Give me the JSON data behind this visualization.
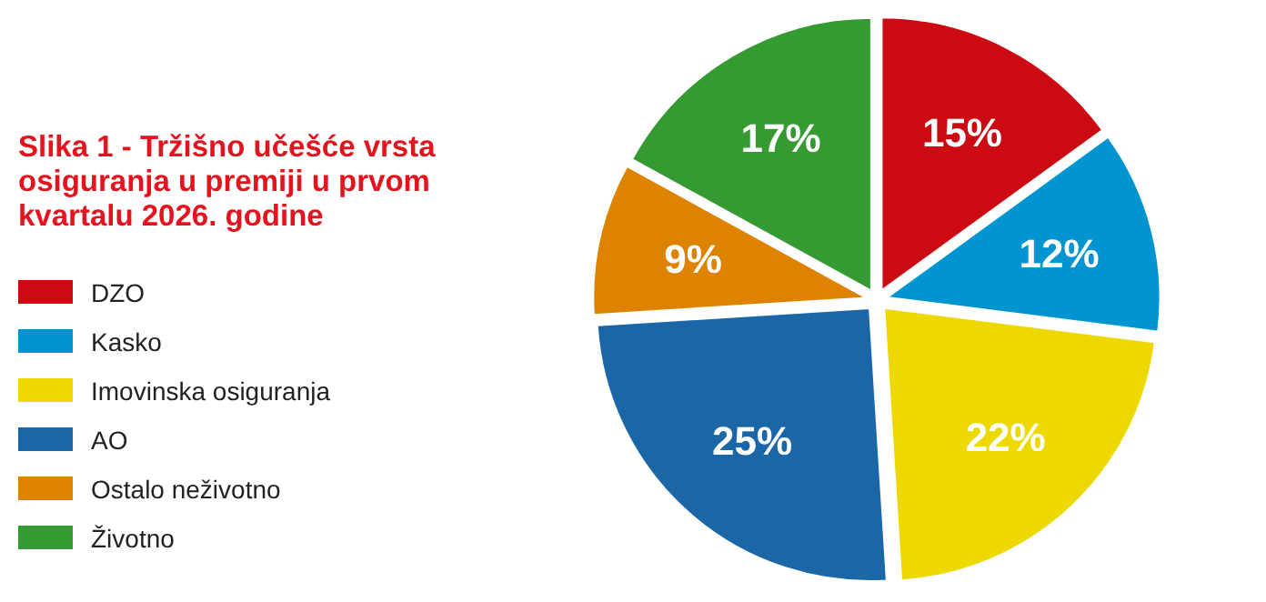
{
  "chart_data": {
    "type": "pie",
    "title": "Slika 1 - Tržišno učešće vrsta osiguranja u premiji u prvom kvartalu 2026. godine",
    "categories": [
      "DZO",
      "Kasko",
      "Imovinska osiguranja",
      "AO",
      "Ostalo neživotno",
      "Životno"
    ],
    "values": [
      15,
      12,
      22,
      25,
      9,
      17
    ],
    "value_labels": [
      "15%",
      "12%",
      "22%",
      "25%",
      "9%",
      "17%"
    ],
    "colors": [
      "#cc0a12",
      "#0094d0",
      "#edd900",
      "#1b66a6",
      "#dd8300",
      "#369a33"
    ],
    "legend": "left"
  }
}
